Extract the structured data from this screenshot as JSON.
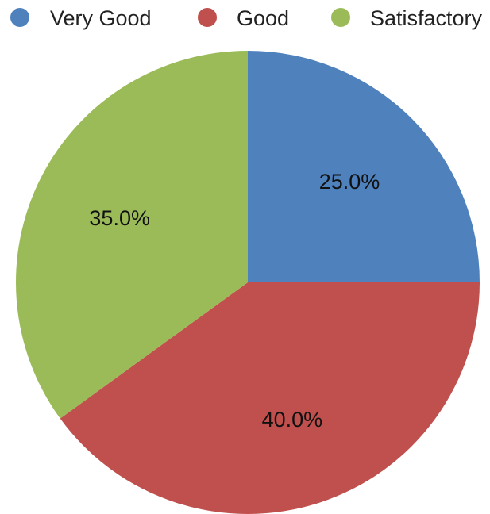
{
  "chart_data": {
    "type": "pie",
    "title": "",
    "legend_position": "top",
    "slices": [
      {
        "name": "Very Good",
        "value": 25.0,
        "label": "25.0%",
        "color": "#4f81bd"
      },
      {
        "name": "Good",
        "value": 40.0,
        "label": "40.0%",
        "color": "#c0504d"
      },
      {
        "name": "Satisfactory",
        "value": 35.0,
        "label": "35.0%",
        "color": "#9bbb59"
      }
    ]
  }
}
